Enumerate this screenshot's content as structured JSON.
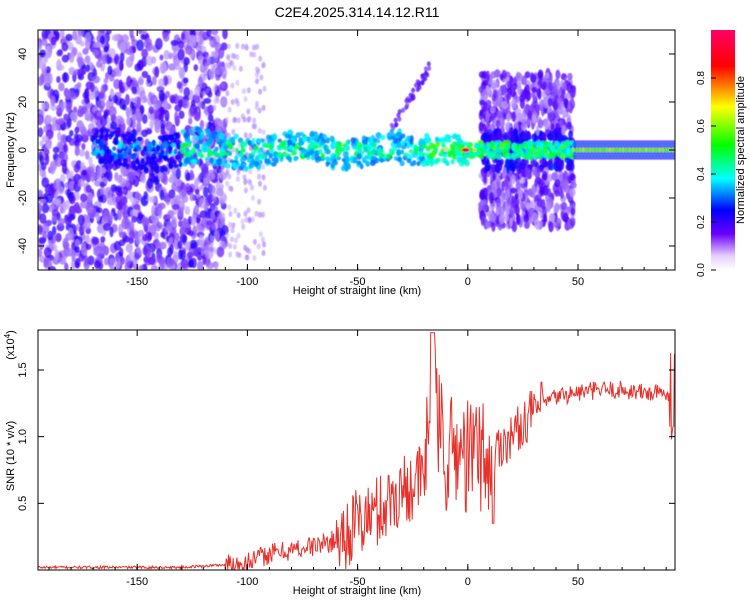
{
  "title": "C2E4.2025.314.14.12.R11",
  "chart_data": [
    {
      "type": "heatmap",
      "name": "spectrogram",
      "xlabel": "Height of straight line (km)",
      "ylabel": "Frequency (Hz)",
      "xlim": [
        -195,
        94
      ],
      "ylim": [
        -50,
        50
      ],
      "x_ticks": [
        "-150",
        "-100",
        "-50",
        "0",
        "50"
      ],
      "x_tick_values": [
        -150,
        -100,
        -50,
        0,
        50
      ],
      "y_ticks": [
        "40",
        "20",
        "0",
        "-20",
        "-40"
      ],
      "y_tick_values": [
        40,
        20,
        0,
        -20,
        -40
      ],
      "colorbar": {
        "label": "Normalized spectral amplitude",
        "range": [
          0.0,
          1.0
        ],
        "ticks": [
          "0.0",
          "0.2",
          "0.4",
          "0.6",
          "0.8"
        ],
        "tick_values": [
          0.0,
          0.2,
          0.4,
          0.6,
          0.8
        ],
        "colors": [
          "#ffffff",
          "#5500ff",
          "#0000ff",
          "#00ffff",
          "#00ff00",
          "#ffff00",
          "#ff0000",
          "#ff0066"
        ]
      },
      "features": {
        "central_band_freq_hz": 0,
        "steady_tone_range_km": [
          48,
          94
        ],
        "steady_tone_amplitude": 0.55,
        "strongest_peak_km": -1,
        "strongest_peak_amplitude": 0.95,
        "broad_noise_region_km": [
          -195,
          -120
        ],
        "wide_spread_region_km": [
          6,
          48
        ]
      }
    },
    {
      "type": "line",
      "name": "snr",
      "xlabel": "Height of straight line (km)",
      "ylabel": "SNR (10 * v/v)",
      "y_scale_label": "(x10",
      "y_scale_exponent": "4",
      "xlim": [
        -195,
        94
      ],
      "ylim": [
        0,
        1.8
      ],
      "x_ticks": [
        "-150",
        "-100",
        "-50",
        "0",
        "50"
      ],
      "x_tick_values": [
        -150,
        -100,
        -50,
        0,
        50
      ],
      "y_ticks": [
        "0.5",
        "1.0",
        "1.5"
      ],
      "y_tick_values": [
        0.5,
        1.0,
        1.5
      ],
      "line_color": "#e8302a",
      "series": [
        {
          "name": "SNR",
          "x": [
            -195,
            -170,
            -150,
            -130,
            -110,
            -100,
            -90,
            -80,
            -70,
            -60,
            -50,
            -40,
            -30,
            -20,
            -16,
            -10,
            -5,
            0,
            5,
            10,
            15,
            20,
            25,
            30,
            40,
            50,
            60,
            70,
            80,
            90,
            94
          ],
          "values": [
            0.02,
            0.02,
            0.02,
            0.02,
            0.04,
            0.06,
            0.12,
            0.15,
            0.18,
            0.22,
            0.35,
            0.45,
            0.6,
            0.7,
            1.3,
            0.85,
            0.9,
            0.85,
            0.9,
            0.8,
            0.95,
            1.0,
            1.1,
            1.2,
            1.3,
            1.33,
            1.35,
            1.35,
            1.33,
            1.32,
            1.35
          ]
        }
      ]
    }
  ]
}
